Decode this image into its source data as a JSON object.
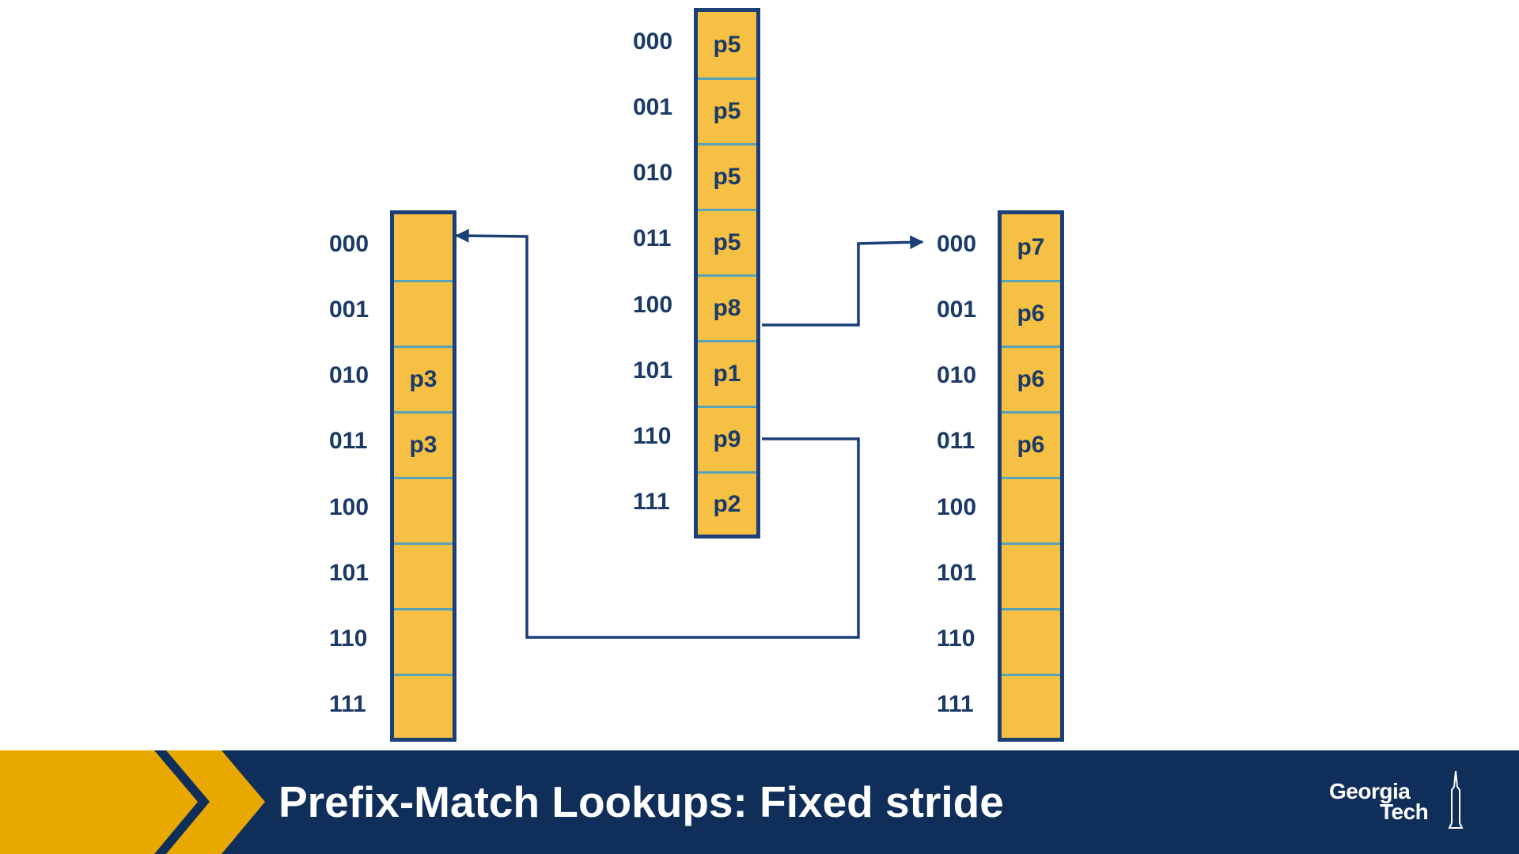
{
  "diagram": {
    "root_table": {
      "labels": [
        "000",
        "001",
        "010",
        "011",
        "100",
        "101",
        "110",
        "111"
      ],
      "cells": [
        "p5",
        "p5",
        "p5",
        "p5",
        "p8",
        "p1",
        "p9",
        "p2"
      ]
    },
    "left_table": {
      "labels": [
        "000",
        "001",
        "010",
        "011",
        "100",
        "101",
        "110",
        "111"
      ],
      "cells": [
        "",
        "",
        "p3",
        "p3",
        "",
        "",
        "",
        ""
      ]
    },
    "right_table": {
      "labels": [
        "000",
        "001",
        "010",
        "011",
        "100",
        "101",
        "110",
        "111"
      ],
      "cells": [
        "p7",
        "p6",
        "p6",
        "p6",
        "",
        "",
        "",
        ""
      ]
    },
    "links": [
      {
        "from": "root_table.100",
        "to": "right_table"
      },
      {
        "from": "root_table.110",
        "to": "left_table"
      }
    ]
  },
  "footer": {
    "title": "Prefix-Match Lookups: Fixed stride",
    "logo_line1": "Georgia",
    "logo_line2": "Tech"
  },
  "colors": {
    "cell_fill": "#f5c044",
    "border": "#1b3f76",
    "divider": "#58a3b8",
    "text": "#1b3a66",
    "footer_bg": "#0f2f5a",
    "accent_gold": "#e9a800"
  }
}
